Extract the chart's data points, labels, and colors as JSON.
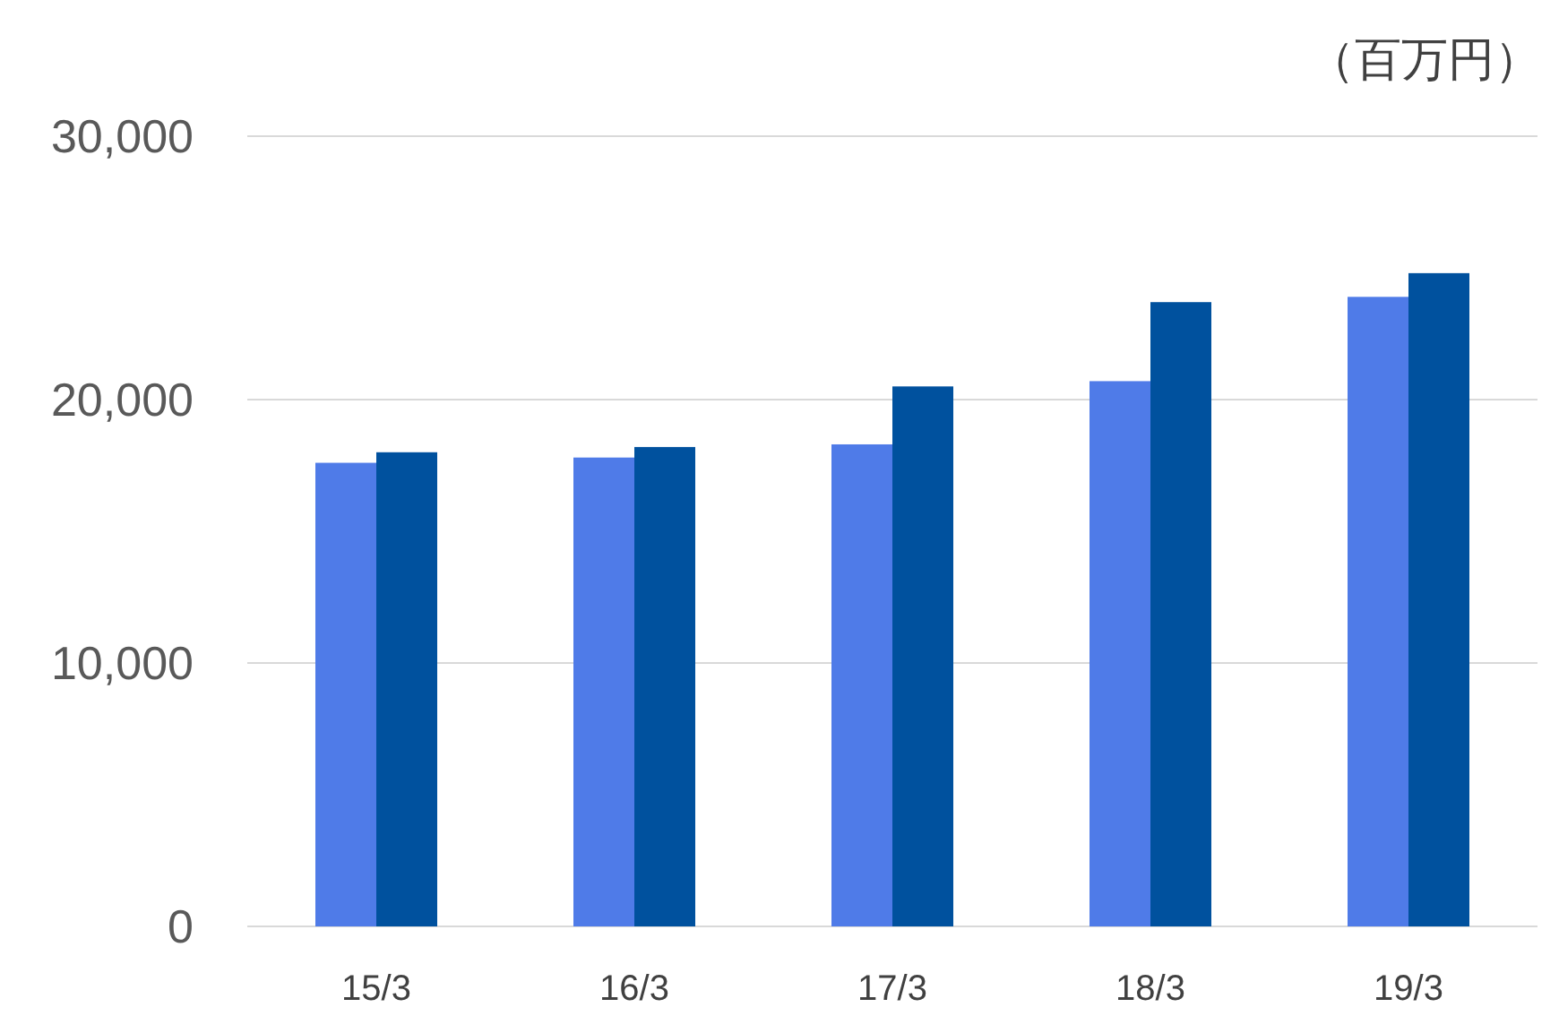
{
  "chart_data": {
    "type": "bar",
    "ylabel": "（百万円）",
    "categories": [
      "15/3",
      "16/3",
      "17/3",
      "18/3",
      "19/3"
    ],
    "series": [
      {
        "color": "#4f7be8",
        "values": [
          17600,
          17800,
          18300,
          20700,
          23900
        ]
      },
      {
        "color": "#00519e",
        "values": [
          18000,
          18200,
          20500,
          23700,
          24800
        ]
      }
    ],
    "ylim": [
      0,
      30000
    ],
    "yticks": [
      {
        "value": 0,
        "label": "0"
      },
      {
        "value": 10000,
        "label": "10,000"
      },
      {
        "value": 20000,
        "label": "20,000"
      },
      {
        "value": 30000,
        "label": "30,000"
      }
    ],
    "grid": "y"
  }
}
